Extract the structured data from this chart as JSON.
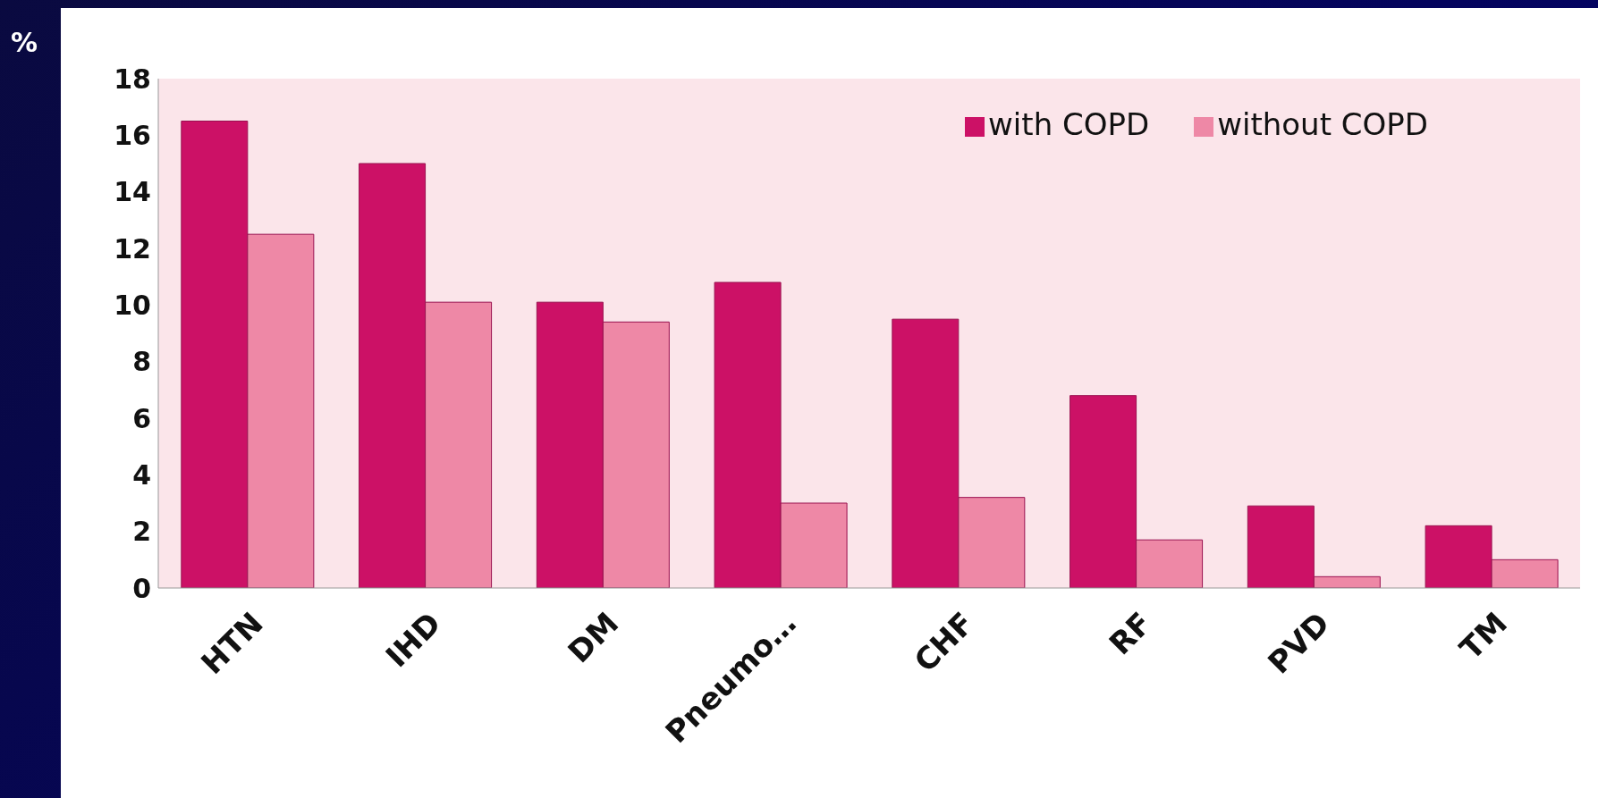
{
  "chart_data": {
    "type": "bar",
    "ylabel": "%",
    "categories": [
      "HTN",
      "IHD",
      "DM",
      "Pneumo…",
      "CHF",
      "RF",
      "PVD",
      "TM"
    ],
    "series": [
      {
        "name": "with COPD",
        "color": "#cc1166",
        "values": [
          16.5,
          15.0,
          10.1,
          10.8,
          9.5,
          6.8,
          2.9,
          2.2
        ]
      },
      {
        "name": "without COPD",
        "color": "#ee88a6",
        "values": [
          12.5,
          10.1,
          9.4,
          3.0,
          3.2,
          1.7,
          0.4,
          1.0
        ]
      }
    ],
    "ylim": [
      0,
      18
    ],
    "yticks": [
      0,
      2,
      4,
      6,
      8,
      10,
      12,
      14,
      16,
      18
    ],
    "grid": false,
    "legend": "top right"
  }
}
